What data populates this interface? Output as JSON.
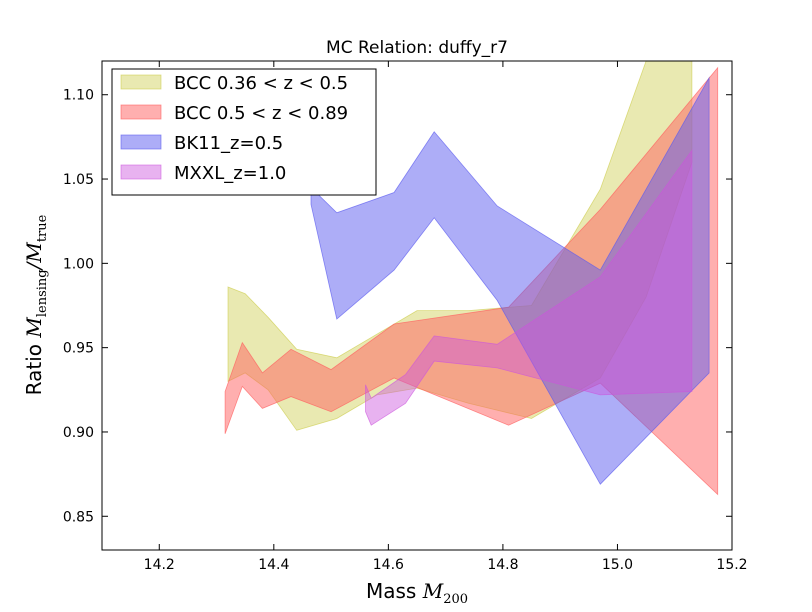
{
  "chart_data": {
    "type": "area",
    "title": "MC Relation: duffy_r7",
    "xlabel": {
      "prefix": "Mass ",
      "symbol": "M",
      "subscript": "200"
    },
    "ylabel": {
      "prefix": "Ratio ",
      "num_symbol": "M",
      "num_sub": "lensing",
      "slash": "/",
      "den_symbol": "M",
      "den_sub": "true"
    },
    "xlim": [
      14.1,
      15.2
    ],
    "ylim": [
      0.83,
      1.12
    ],
    "xticks": [
      14.2,
      14.4,
      14.6,
      14.8,
      15.0,
      15.2
    ],
    "xtick_labels": [
      "14.2",
      "14.4",
      "14.6",
      "14.8",
      "15.0",
      "15.2"
    ],
    "yticks": [
      0.85,
      0.9,
      0.95,
      1.0,
      1.05,
      1.1
    ],
    "ytick_labels": [
      "0.85",
      "0.90",
      "0.95",
      "1.00",
      "1.05",
      "1.10"
    ],
    "grid": false,
    "legend_position": "upper-left",
    "series": [
      {
        "name": "BCC 0.36 < z < 0.5",
        "color": "#c8c83c",
        "opacity": 0.4,
        "x": [
          14.32,
          14.35,
          14.39,
          14.44,
          14.51,
          14.58,
          14.65,
          14.74,
          14.85,
          14.97,
          15.05,
          15.13
        ],
        "upper": [
          0.986,
          0.982,
          0.968,
          0.949,
          0.944,
          0.958,
          0.972,
          0.972,
          0.975,
          1.044,
          1.12,
          1.12
        ],
        "lower": [
          0.93,
          0.935,
          0.925,
          0.901,
          0.908,
          0.922,
          0.926,
          0.917,
          0.908,
          0.932,
          0.98,
          1.06
        ]
      },
      {
        "name": "BCC 0.5 < z < 0.89",
        "color": "#ff6060",
        "opacity": 0.5,
        "x": [
          14.315,
          14.345,
          14.38,
          14.43,
          14.5,
          14.61,
          14.81,
          14.97,
          15.175
        ],
        "upper": [
          0.924,
          0.953,
          0.935,
          0.949,
          0.937,
          0.964,
          0.974,
          1.032,
          1.116
        ],
        "lower": [
          0.899,
          0.927,
          0.914,
          0.921,
          0.912,
          0.932,
          0.904,
          0.929,
          0.863
        ]
      },
      {
        "name": "BK11_z=0.5",
        "color": "#5c5cf0",
        "opacity": 0.5,
        "x": [
          14.465,
          14.51,
          14.61,
          14.68,
          14.79,
          14.97,
          15.16
        ],
        "upper": [
          1.045,
          1.03,
          1.042,
          1.078,
          1.034,
          0.996,
          1.11
        ],
        "lower": [
          1.035,
          0.967,
          0.996,
          1.027,
          0.978,
          0.869,
          0.935
        ]
      },
      {
        "name": "MXXL_z=1.0",
        "color": "#cc55dd",
        "opacity": 0.45,
        "x": [
          14.56,
          14.57,
          14.63,
          14.68,
          14.79,
          14.97,
          15.13
        ],
        "upper": [
          0.928,
          0.92,
          0.934,
          0.957,
          0.952,
          0.992,
          1.067
        ],
        "lower": [
          0.912,
          0.904,
          0.917,
          0.942,
          0.938,
          0.922,
          0.924
        ]
      }
    ]
  }
}
